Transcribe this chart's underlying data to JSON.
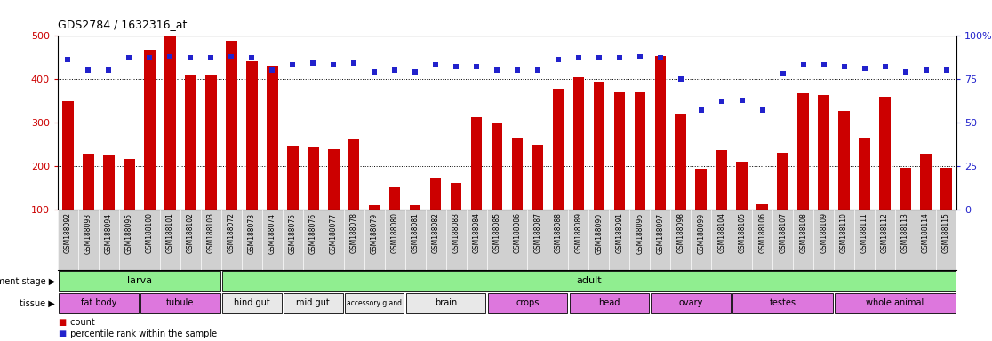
{
  "title": "GDS2784 / 1632316_at",
  "samples": [
    "GSM188092",
    "GSM188093",
    "GSM188094",
    "GSM188095",
    "GSM188100",
    "GSM188101",
    "GSM188102",
    "GSM188103",
    "GSM188072",
    "GSM188073",
    "GSM188074",
    "GSM188075",
    "GSM188076",
    "GSM188077",
    "GSM188078",
    "GSM188079",
    "GSM188080",
    "GSM188081",
    "GSM188082",
    "GSM188083",
    "GSM188084",
    "GSM188085",
    "GSM188086",
    "GSM188087",
    "GSM188088",
    "GSM188089",
    "GSM188090",
    "GSM188091",
    "GSM188096",
    "GSM188097",
    "GSM188098",
    "GSM188099",
    "GSM188104",
    "GSM188105",
    "GSM188106",
    "GSM188107",
    "GSM188108",
    "GSM188109",
    "GSM188110",
    "GSM188111",
    "GSM188112",
    "GSM188113",
    "GSM188114",
    "GSM188115"
  ],
  "counts": [
    350,
    228,
    226,
    216,
    468,
    497,
    411,
    409,
    487,
    440,
    430,
    246,
    242,
    239,
    263,
    110,
    152,
    111,
    172,
    161,
    313,
    300,
    265,
    249,
    378,
    405,
    393,
    370,
    369,
    453,
    321,
    193,
    236,
    211,
    113,
    231,
    367,
    363,
    327,
    265,
    360,
    196,
    229,
    195
  ],
  "percentiles": [
    86,
    80,
    80,
    87,
    87,
    88,
    87,
    87,
    88,
    87,
    80,
    83,
    84,
    83,
    84,
    79,
    80,
    79,
    83,
    82,
    82,
    80,
    80,
    80,
    86,
    87,
    87,
    87,
    88,
    87,
    75,
    57,
    62,
    63,
    57,
    78,
    83,
    83,
    82,
    81,
    82,
    79,
    80,
    80
  ],
  "dev_stages": [
    {
      "label": "larva",
      "start": 0,
      "end": 8
    },
    {
      "label": "adult",
      "start": 8,
      "end": 44
    }
  ],
  "tissues": [
    {
      "label": "fat body",
      "start": 0,
      "end": 4,
      "color": "#DD77DD"
    },
    {
      "label": "tubule",
      "start": 4,
      "end": 8,
      "color": "#DD77DD"
    },
    {
      "label": "hind gut",
      "start": 8,
      "end": 11,
      "color": "#E8E8E8"
    },
    {
      "label": "mid gut",
      "start": 11,
      "end": 14,
      "color": "#E8E8E8"
    },
    {
      "label": "accessory gland",
      "start": 14,
      "end": 17,
      "color": "#E8E8E8"
    },
    {
      "label": "brain",
      "start": 17,
      "end": 21,
      "color": "#E8E8E8"
    },
    {
      "label": "crops",
      "start": 21,
      "end": 25,
      "color": "#DD77DD"
    },
    {
      "label": "head",
      "start": 25,
      "end": 29,
      "color": "#DD77DD"
    },
    {
      "label": "ovary",
      "start": 29,
      "end": 33,
      "color": "#DD77DD"
    },
    {
      "label": "testes",
      "start": 33,
      "end": 38,
      "color": "#DD77DD"
    },
    {
      "label": "whole animal",
      "start": 38,
      "end": 44,
      "color": "#DD77DD"
    }
  ],
  "bar_color": "#CC0000",
  "dot_color": "#2222CC",
  "chart_bg": "#FFFFFF",
  "xlabels_bg": "#D0D0D0",
  "dev_color": "#90EE90",
  "ylim_left": [
    100,
    500
  ],
  "ylim_right": [
    0,
    100
  ],
  "yticks_left": [
    100,
    200,
    300,
    400,
    500
  ],
  "yticks_right": [
    0,
    25,
    50,
    75,
    100
  ],
  "grid_lines": [
    200,
    300,
    400
  ]
}
